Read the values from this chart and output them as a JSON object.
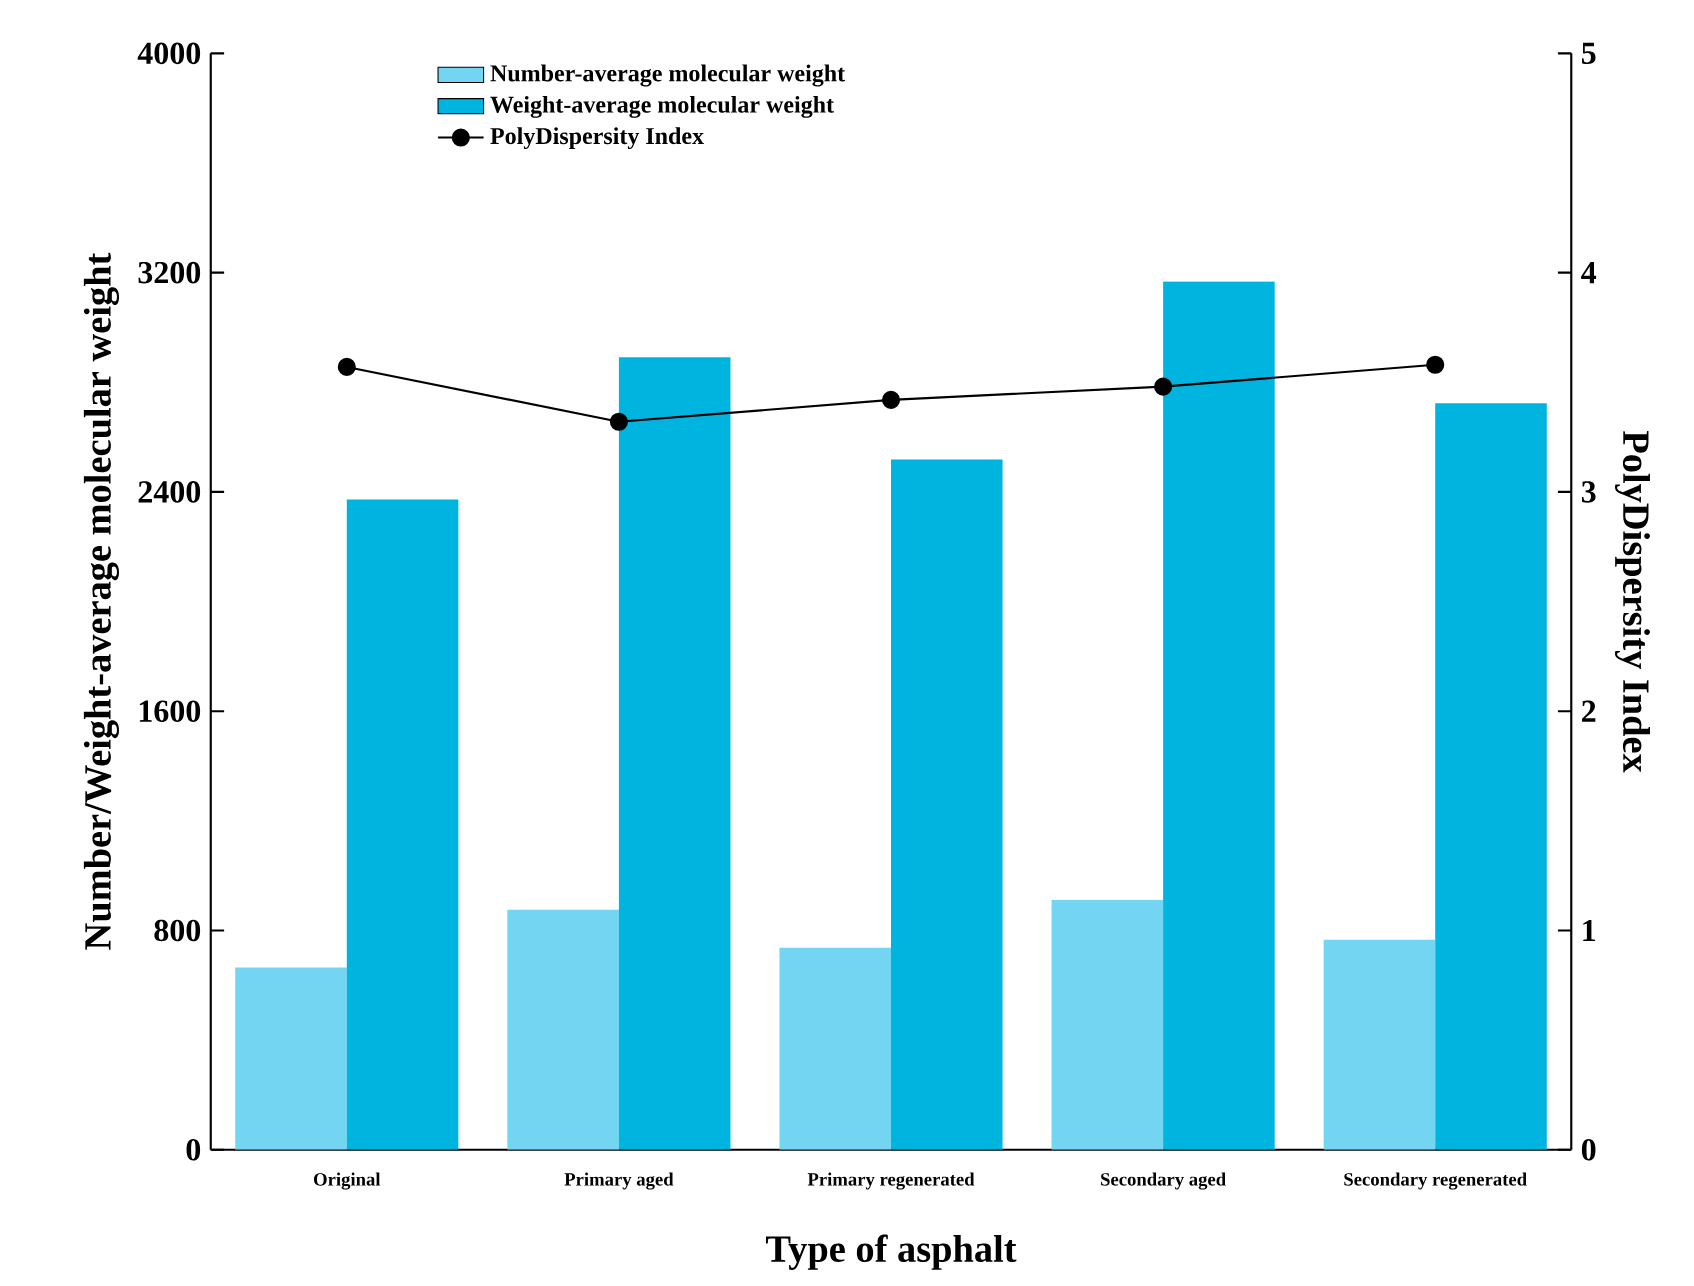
{
  "chart_data": {
    "type": "bar",
    "xlabel": "Type of asphalt",
    "ylabel": "Number/Weight-average molecular weight",
    "y2label": "PolyDispersity Index",
    "categories": [
      "Original",
      "Primary aged",
      "Primary regenerated",
      "Secondary aged",
      "Secondary regenerated"
    ],
    "series": [
      {
        "name": "Number-average molecular weight",
        "color": "#73d5f2",
        "values": [
          665,
          876,
          737,
          912,
          766
        ]
      },
      {
        "name": "Weight-average molecular weight",
        "color": "#00b4e0",
        "values": [
          2372,
          2891,
          2518,
          3168,
          2723
        ]
      },
      {
        "name": "PolyDispersity Index",
        "type": "line",
        "axis": "y2",
        "color": "#000000",
        "marker": "circle",
        "line_style": "solid",
        "values": [
          3.57,
          3.32,
          3.42,
          3.48,
          3.58
        ]
      }
    ],
    "ylim": [
      0,
      4000
    ],
    "yticks": [
      0,
      800,
      1600,
      2400,
      3200,
      4000
    ],
    "y2lim": [
      0,
      5
    ],
    "y2ticks": [
      0,
      1,
      2,
      3,
      4,
      5
    ],
    "grid": false,
    "legend": "top left"
  }
}
